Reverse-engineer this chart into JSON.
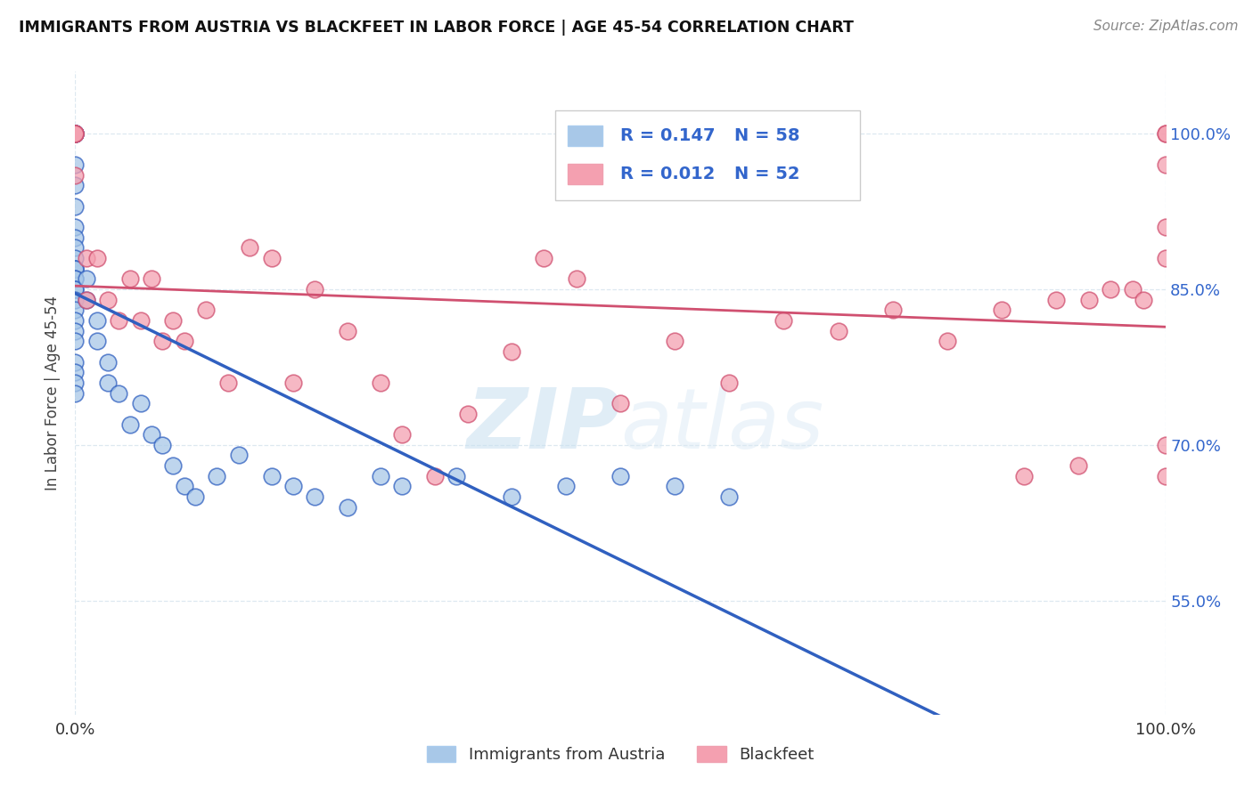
{
  "title": "IMMIGRANTS FROM AUSTRIA VS BLACKFEET IN LABOR FORCE | AGE 45-54 CORRELATION CHART",
  "source": "Source: ZipAtlas.com",
  "ylabel": "In Labor Force | Age 45-54",
  "xlim": [
    0.0,
    1.0
  ],
  "ylim": [
    0.44,
    1.06
  ],
  "yticks": [
    0.55,
    0.7,
    0.85,
    1.0
  ],
  "ytick_labels": [
    "55.0%",
    "70.0%",
    "85.0%",
    "100.0%"
  ],
  "xtick_labels": [
    "0.0%",
    "100.0%"
  ],
  "austria_R": "0.147",
  "austria_N": "58",
  "blackfeet_R": "0.012",
  "blackfeet_N": "52",
  "austria_color": "#a8c8e8",
  "blackfeet_color": "#f4a0b0",
  "austria_line_color": "#3060c0",
  "blackfeet_line_color": "#d05070",
  "legend_color": "#3366cc",
  "background_color": "#ffffff",
  "grid_color": "#dde8f0",
  "watermark_zip": "ZIP",
  "watermark_atlas": "atlas",
  "austria_scatter_x": [
    0.0,
    0.0,
    0.0,
    0.0,
    0.0,
    0.0,
    0.0,
    0.0,
    0.0,
    0.0,
    0.0,
    0.0,
    0.0,
    0.0,
    0.0,
    0.0,
    0.0,
    0.0,
    0.0,
    0.0,
    0.0,
    0.0,
    0.0,
    0.0,
    0.0,
    0.0,
    0.0,
    0.0,
    0.0,
    0.0,
    0.01,
    0.01,
    0.02,
    0.02,
    0.03,
    0.03,
    0.04,
    0.05,
    0.06,
    0.07,
    0.08,
    0.09,
    0.1,
    0.11,
    0.13,
    0.15,
    0.18,
    0.2,
    0.22,
    0.25,
    0.28,
    0.3,
    0.35,
    0.4,
    0.45,
    0.5,
    0.55,
    0.6
  ],
  "austria_scatter_y": [
    1.0,
    1.0,
    1.0,
    1.0,
    1.0,
    1.0,
    1.0,
    0.97,
    0.95,
    0.93,
    0.91,
    0.9,
    0.89,
    0.88,
    0.87,
    0.87,
    0.87,
    0.86,
    0.86,
    0.85,
    0.85,
    0.84,
    0.83,
    0.82,
    0.81,
    0.8,
    0.78,
    0.77,
    0.76,
    0.75,
    0.86,
    0.84,
    0.82,
    0.8,
    0.78,
    0.76,
    0.75,
    0.72,
    0.74,
    0.71,
    0.7,
    0.68,
    0.66,
    0.65,
    0.67,
    0.69,
    0.67,
    0.66,
    0.65,
    0.64,
    0.67,
    0.66,
    0.67,
    0.65,
    0.66,
    0.67,
    0.66,
    0.65
  ],
  "blackfeet_scatter_x": [
    0.0,
    0.0,
    0.0,
    0.0,
    0.0,
    0.01,
    0.01,
    0.02,
    0.03,
    0.04,
    0.05,
    0.06,
    0.07,
    0.08,
    0.09,
    0.1,
    0.12,
    0.14,
    0.16,
    0.18,
    0.2,
    0.22,
    0.25,
    0.28,
    0.3,
    0.33,
    0.36,
    0.4,
    0.43,
    0.46,
    0.5,
    0.55,
    0.6,
    0.65,
    0.7,
    0.75,
    0.8,
    0.85,
    0.87,
    0.9,
    0.92,
    0.93,
    0.95,
    0.97,
    0.98,
    1.0,
    1.0,
    1.0,
    1.0,
    1.0,
    1.0,
    1.0
  ],
  "blackfeet_scatter_y": [
    1.0,
    1.0,
    1.0,
    1.0,
    0.96,
    0.88,
    0.84,
    0.88,
    0.84,
    0.82,
    0.86,
    0.82,
    0.86,
    0.8,
    0.82,
    0.8,
    0.83,
    0.76,
    0.89,
    0.88,
    0.76,
    0.85,
    0.81,
    0.76,
    0.71,
    0.67,
    0.73,
    0.79,
    0.88,
    0.86,
    0.74,
    0.8,
    0.76,
    0.82,
    0.81,
    0.83,
    0.8,
    0.83,
    0.67,
    0.84,
    0.68,
    0.84,
    0.85,
    0.85,
    0.84,
    1.0,
    1.0,
    0.97,
    0.91,
    0.88,
    0.7,
    0.67
  ]
}
